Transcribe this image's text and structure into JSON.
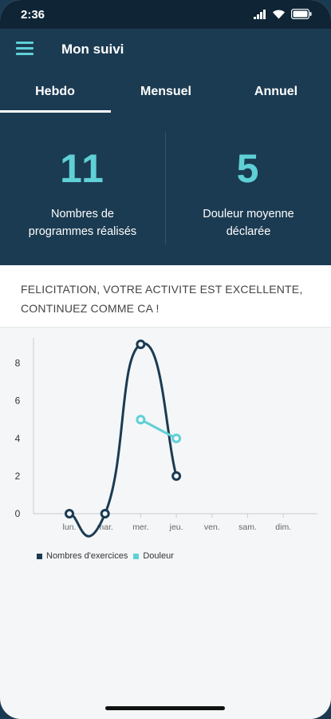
{
  "status_bar": {
    "time": "2:36",
    "icons": [
      "signal-icon",
      "wifi-icon",
      "battery-icon"
    ]
  },
  "app_bar": {
    "title": "Mon suivi",
    "menu_icon": "hamburger-menu-icon"
  },
  "tabs": [
    {
      "label": "Hebdo",
      "active": true
    },
    {
      "label": "Mensuel",
      "active": false
    },
    {
      "label": "Annuel",
      "active": false
    }
  ],
  "stats": [
    {
      "value": "11",
      "label_line1": "Nombres de",
      "label_line2": "programmes réalisés"
    },
    {
      "value": "5",
      "label_line1": "Douleur moyenne",
      "label_line2": "déclarée"
    }
  ],
  "banner": {
    "line1": "FELICITATION, VOTRE ACTIVITE EST EXCELLENTE,",
    "line2": "CONTINUEZ COMME CA !"
  },
  "colors": {
    "header": "#1b3b52",
    "accent": "#5fd0d6",
    "series_exercises": "#1b3b52",
    "series_pain": "#5fd0d6"
  },
  "chart_data": {
    "type": "line",
    "categories": [
      "lun.",
      "mar.",
      "mer.",
      "jeu.",
      "ven.",
      "sam.",
      "dim."
    ],
    "yticks": [
      0,
      2,
      4,
      6,
      8
    ],
    "ylim": [
      0,
      9
    ],
    "series": [
      {
        "name": "Nombres d'exercices",
        "values": [
          0,
          0,
          9,
          2,
          null,
          null,
          null
        ]
      },
      {
        "name": "Douleur",
        "values": [
          null,
          null,
          5,
          4,
          null,
          null,
          null
        ]
      }
    ],
    "legend_position": "bottom-left"
  }
}
